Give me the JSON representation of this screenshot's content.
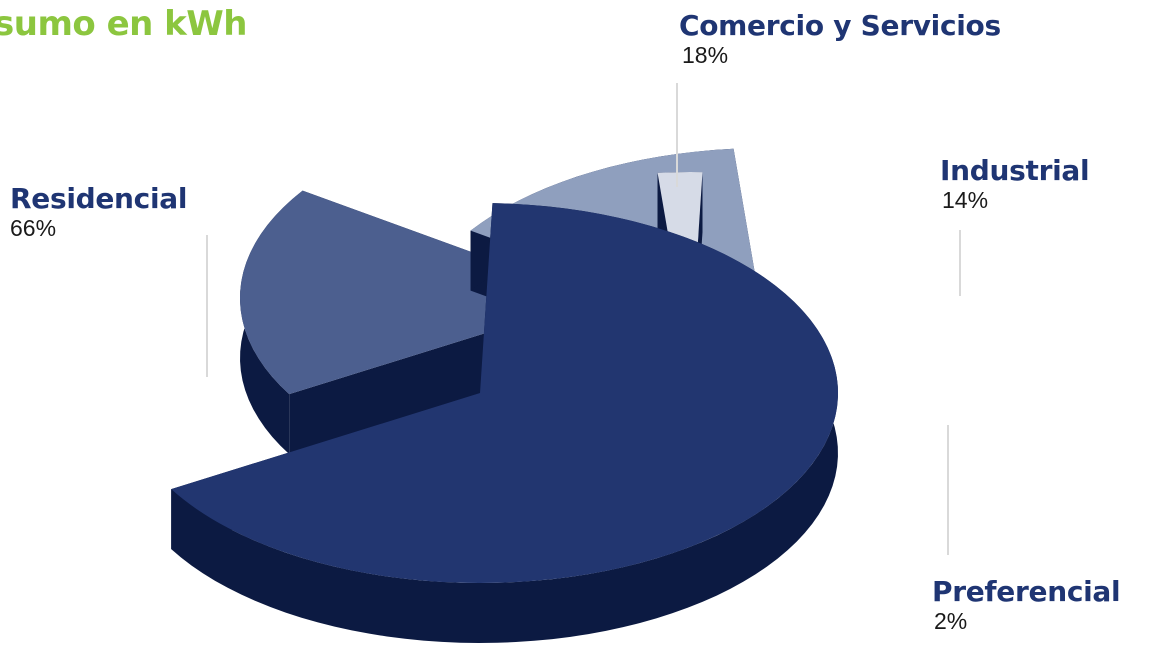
{
  "chart_data": {
    "type": "pie",
    "title": "sumo en kWh",
    "categories": [
      "Residencial",
      "Comercio y Servicios",
      "Industrial",
      "Preferencial"
    ],
    "values": [
      66,
      18,
      14,
      2
    ],
    "value_labels": [
      "66%",
      "18%",
      "14%",
      "2%"
    ],
    "colors": [
      "#223670",
      "#4c5f8f",
      "#8f9fbe",
      "#d6dbe7"
    ],
    "side_color": "#0c1a42",
    "exploded": true,
    "three_d": true,
    "legend": "none"
  },
  "colors": {
    "title": "#8cc63f",
    "label": "#1f3573",
    "leader_line": "#d9d9d9"
  }
}
